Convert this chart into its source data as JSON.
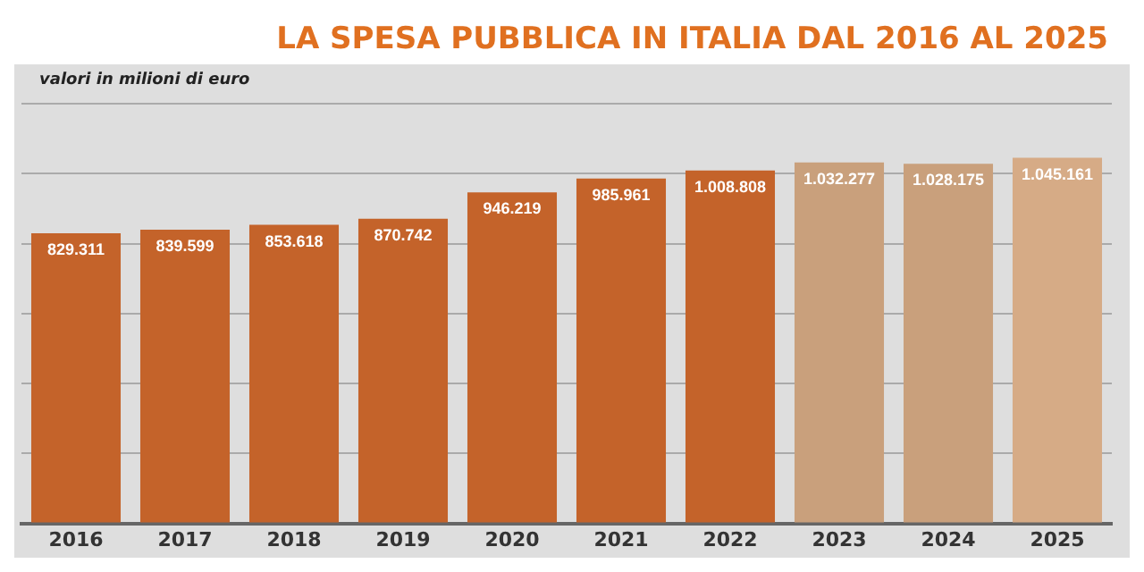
{
  "chart_data": {
    "type": "bar",
    "title": "LA SPESA PUBBLICA IN ITALIA DAL 2016 AL 2025",
    "annotations": [
      "valori in milioni di euro"
    ],
    "categories": [
      "2016",
      "2017",
      "2018",
      "2019",
      "2020",
      "2021",
      "2022",
      "2023",
      "2024",
      "2025"
    ],
    "values": [
      829311,
      839599,
      853618,
      870742,
      946219,
      985961,
      1008808,
      1032277,
      1028175,
      1045161
    ],
    "value_labels": [
      "829.311",
      "839.599",
      "853.618",
      "870.742",
      "946.219",
      "985.961",
      "1.008.808",
      "1.032.277",
      "1.028.175",
      "1.045.161"
    ],
    "colors": [
      "#c4632a",
      "#c4632a",
      "#c4632a",
      "#c4632a",
      "#c4632a",
      "#c4632a",
      "#c4632a",
      "#c9a07c",
      "#c9a07c",
      "#d6ab86"
    ],
    "grid": "y"
  }
}
